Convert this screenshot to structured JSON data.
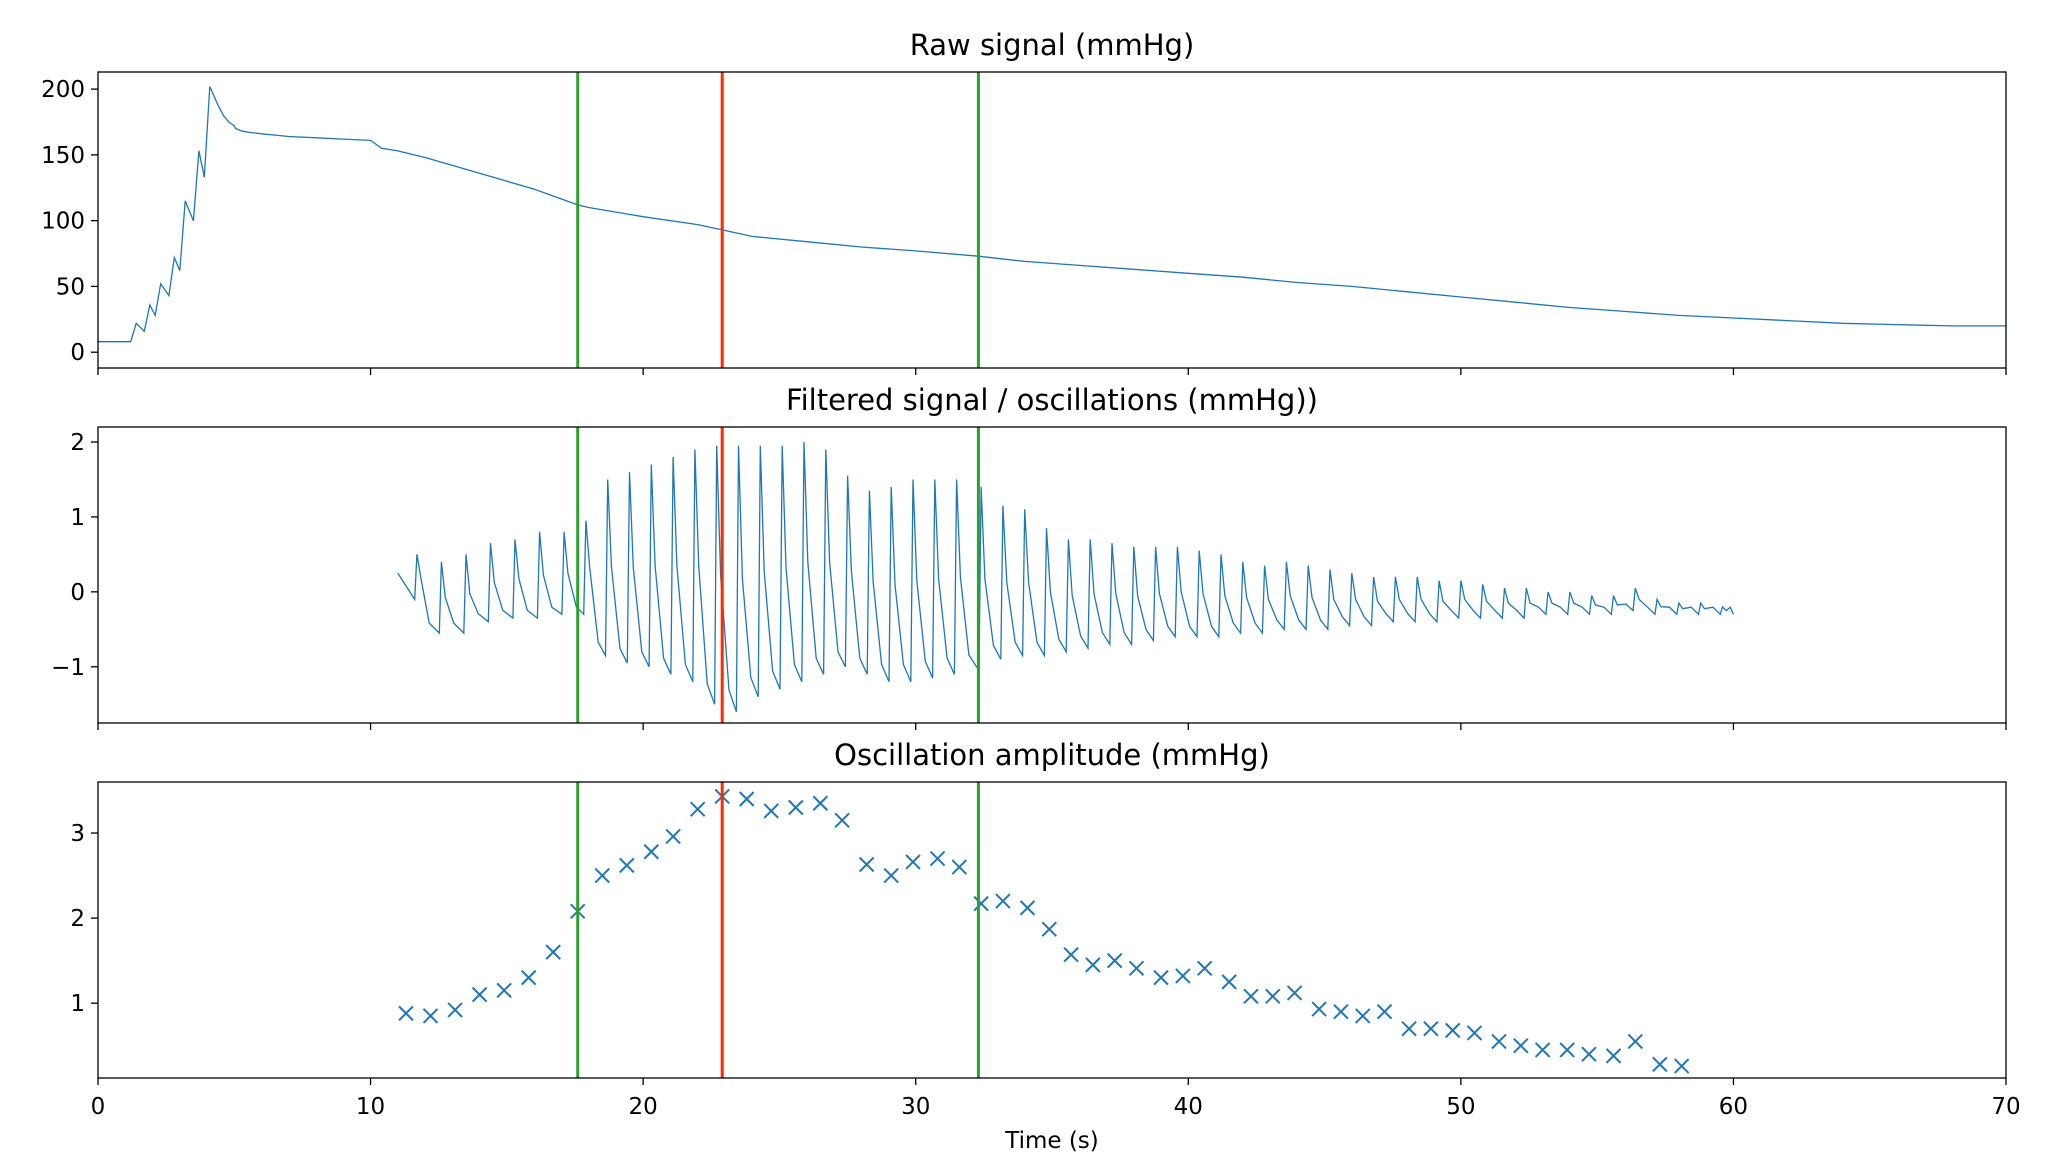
{
  "colors": {
    "series": "#1f77b4",
    "systolic_line": "#2ca02c",
    "diastolic_line": "#2ca02c",
    "map_line": "#ff2a00",
    "axes": "#000000"
  },
  "chart_data": [
    {
      "type": "line",
      "title": "Raw signal (mmHg)",
      "xlim": [
        0,
        70
      ],
      "ylim": [
        -12,
        213
      ],
      "yticks": [
        0,
        50,
        100,
        150,
        200
      ],
      "xticks": [
        0,
        10,
        20,
        30,
        40,
        50,
        60,
        70
      ],
      "show_xtick_labels": false,
      "vlines": [
        {
          "x": 17.6,
          "role": "systolic"
        },
        {
          "x": 22.9,
          "role": "map"
        },
        {
          "x": 32.3,
          "role": "diastolic"
        }
      ],
      "series": [
        {
          "x": [
            0,
            1.2,
            1.4,
            1.7,
            1.9,
            2.1,
            2.3,
            2.6,
            2.8,
            3.0,
            3.2,
            3.5,
            3.7,
            3.9,
            4.1,
            4.4,
            4.6,
            4.8,
            5.0,
            5.05,
            5.3,
            5.6,
            6.0,
            6.5,
            7.0,
            8.0,
            9.0,
            10.0,
            10.4,
            11.0,
            12.0,
            14.0,
            16.0,
            17.6,
            18.0,
            20.0,
            22.0,
            22.9,
            24.0,
            26.0,
            28.0,
            30.0,
            32.3,
            34.0,
            36.0,
            38.0,
            40.0,
            42.0,
            44.0,
            46.0,
            48.0,
            50.0,
            52.0,
            54.0,
            56.0,
            58.0,
            60.0,
            62.0,
            64.0,
            66.0,
            68.0,
            70.0
          ],
          "y": [
            8,
            8,
            22,
            16,
            36,
            28,
            52,
            43,
            72,
            62,
            115,
            100,
            153,
            133,
            202,
            188,
            180,
            175,
            172,
            170,
            168,
            167,
            166,
            165,
            164,
            163,
            162,
            161,
            155,
            153,
            148,
            136,
            124,
            112,
            110,
            103,
            97,
            93,
            88,
            84,
            80,
            77,
            73,
            69,
            66,
            63,
            60,
            57,
            53,
            50,
            46,
            42,
            38,
            34,
            31,
            28,
            26,
            24,
            22,
            21,
            20,
            20
          ]
        }
      ]
    },
    {
      "type": "line",
      "title": "Filtered signal / oscillations (mmHg))",
      "xlim": [
        0,
        70
      ],
      "ylim": [
        -1.75,
        2.2
      ],
      "yticks": [
        -1,
        0,
        1,
        2
      ],
      "ytick_labels": [
        "−1",
        "0",
        "1",
        "2"
      ],
      "xticks": [
        0,
        10,
        20,
        30,
        40,
        50,
        60,
        70
      ],
      "show_xtick_labels": false,
      "vlines": [
        {
          "x": 17.6,
          "role": "systolic"
        },
        {
          "x": 22.9,
          "role": "map"
        },
        {
          "x": 32.3,
          "role": "diastolic"
        }
      ],
      "oscillation_model": {
        "x_start": 11.0,
        "x_end": 60.0,
        "beat_times": [
          11.7,
          12.6,
          13.5,
          14.4,
          15.3,
          16.2,
          17.1,
          17.9,
          18.7,
          19.5,
          20.3,
          21.1,
          21.9,
          22.7,
          23.5,
          24.3,
          25.1,
          25.9,
          26.7,
          27.5,
          28.3,
          29.1,
          29.9,
          30.7,
          31.5,
          32.4,
          33.2,
          34.0,
          34.8,
          35.6,
          36.4,
          37.2,
          38.0,
          38.8,
          39.6,
          40.4,
          41.2,
          42.0,
          42.8,
          43.6,
          44.4,
          45.2,
          46.0,
          46.8,
          47.6,
          48.4,
          49.2,
          50.0,
          50.8,
          51.6,
          52.4,
          53.2,
          54.0,
          54.8,
          55.6,
          56.4,
          57.2,
          58.0,
          58.8,
          59.6
        ],
        "peaks": [
          0.5,
          0.4,
          0.5,
          0.65,
          0.7,
          0.8,
          0.8,
          0.95,
          1.5,
          1.6,
          1.7,
          1.8,
          1.9,
          1.95,
          1.95,
          1.95,
          1.95,
          2.0,
          1.9,
          1.55,
          1.35,
          1.4,
          1.5,
          1.5,
          1.5,
          1.4,
          1.15,
          1.1,
          0.85,
          0.7,
          0.7,
          0.65,
          0.6,
          0.6,
          0.6,
          0.55,
          0.5,
          0.4,
          0.35,
          0.4,
          0.35,
          0.3,
          0.25,
          0.2,
          0.2,
          0.2,
          0.15,
          0.15,
          0.1,
          0.05,
          0.05,
          0.0,
          0.0,
          -0.05,
          -0.05,
          0.05,
          -0.1,
          -0.15,
          -0.15,
          -0.2
        ],
        "troughs": [
          -0.1,
          -0.55,
          -0.55,
          -0.4,
          -0.35,
          -0.35,
          -0.3,
          -0.3,
          -0.85,
          -0.95,
          -1.0,
          -1.1,
          -1.2,
          -1.5,
          -1.6,
          -1.4,
          -1.3,
          -1.2,
          -1.1,
          -1.0,
          -1.1,
          -1.2,
          -1.2,
          -1.15,
          -1.1,
          -1.05,
          -0.9,
          -0.85,
          -0.85,
          -0.8,
          -0.75,
          -0.7,
          -0.7,
          -0.65,
          -0.6,
          -0.6,
          -0.6,
          -0.55,
          -0.55,
          -0.5,
          -0.5,
          -0.5,
          -0.45,
          -0.45,
          -0.4,
          -0.4,
          -0.4,
          -0.35,
          -0.35,
          -0.35,
          -0.35,
          -0.3,
          -0.3,
          -0.3,
          -0.3,
          -0.25,
          -0.3,
          -0.3,
          -0.3,
          -0.3
        ]
      }
    },
    {
      "type": "scatter",
      "title": "Oscillation amplitude (mmHg)",
      "xlabel": "Time (s)",
      "xlim": [
        0,
        70
      ],
      "ylim": [
        0.12,
        3.6
      ],
      "yticks": [
        1,
        2,
        3
      ],
      "xticks": [
        0,
        10,
        20,
        30,
        40,
        50,
        60,
        70
      ],
      "show_xtick_labels": true,
      "marker": "x",
      "vlines": [
        {
          "x": 17.6,
          "role": "systolic"
        },
        {
          "x": 22.9,
          "role": "map"
        },
        {
          "x": 32.3,
          "role": "diastolic"
        }
      ],
      "series": [
        {
          "x": [
            11.3,
            12.2,
            13.1,
            14.0,
            14.9,
            15.8,
            16.7,
            17.6,
            18.5,
            19.4,
            20.3,
            21.1,
            22.0,
            22.9,
            23.8,
            24.7,
            25.6,
            26.5,
            27.3,
            28.2,
            29.1,
            29.9,
            30.8,
            31.6,
            32.4,
            33.2,
            34.1,
            34.9,
            35.7,
            36.5,
            37.3,
            38.1,
            39.0,
            39.8,
            40.6,
            41.5,
            42.3,
            43.1,
            43.9,
            44.8,
            45.6,
            46.4,
            47.2,
            48.1,
            48.9,
            49.7,
            50.5,
            51.4,
            52.2,
            53.0,
            53.9,
            54.7,
            55.6,
            56.4,
            57.3,
            58.1
          ],
          "y": [
            0.88,
            0.85,
            0.92,
            1.1,
            1.15,
            1.3,
            1.6,
            2.08,
            2.5,
            2.62,
            2.78,
            2.96,
            3.28,
            3.43,
            3.4,
            3.26,
            3.3,
            3.35,
            3.15,
            2.63,
            2.5,
            2.66,
            2.7,
            2.6,
            2.17,
            2.2,
            2.12,
            1.87,
            1.57,
            1.45,
            1.5,
            1.41,
            1.3,
            1.32,
            1.41,
            1.25,
            1.08,
            1.08,
            1.12,
            0.93,
            0.9,
            0.85,
            0.9,
            0.7,
            0.7,
            0.68,
            0.65,
            0.55,
            0.5,
            0.45,
            0.45,
            0.4,
            0.38,
            0.55,
            0.28,
            0.26
          ]
        }
      ]
    }
  ]
}
